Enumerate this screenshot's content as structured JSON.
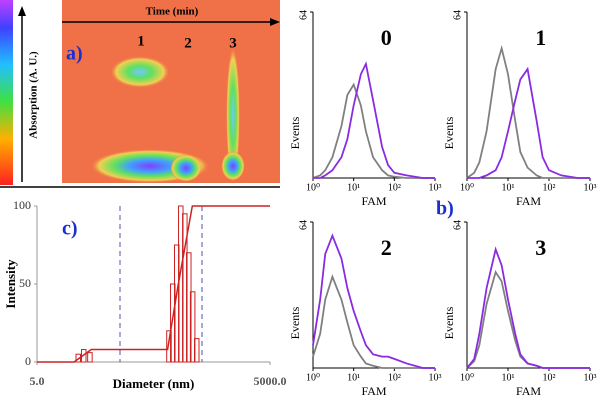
{
  "heatmap": {
    "label": "a)",
    "x_label": "Time (min)",
    "y_label": "Absorption (A. U.)",
    "peaks": [
      "1",
      "2",
      "3"
    ]
  },
  "panel_b_label": "b)",
  "chart_data": [
    {
      "type": "bar",
      "label": "c)",
      "x_label": "Diameter (nm)",
      "y_label": "Intensity",
      "log_x": true,
      "xlim": [
        5,
        5000
      ],
      "xticks": [
        {
          "value": 5,
          "label": "5.0"
        },
        {
          "value": 5000,
          "label": "5000.0"
        }
      ],
      "ylim": [
        0,
        100
      ],
      "yticks": [
        0,
        50,
        100
      ],
      "color": "#cc2222",
      "bars": {
        "x": [
          17,
          20,
          24,
          250,
          280,
          315,
          355,
          400,
          450,
          505,
          570
        ],
        "values": [
          5,
          8,
          6,
          20,
          50,
          75,
          100,
          95,
          70,
          45,
          15
        ]
      },
      "line": {
        "x": [
          5,
          15,
          25,
          240,
          330,
          500,
          5000
        ],
        "values": [
          0,
          0,
          8,
          8,
          50,
          100,
          100
        ]
      }
    },
    {
      "type": "line",
      "title": "0",
      "x_label": "FAM",
      "y_label": "Events",
      "log_x": true,
      "xlim": [
        1,
        1000
      ],
      "xticks": [
        {
          "value": 1,
          "label": "10⁰"
        },
        {
          "value": 10,
          "label": "10¹"
        },
        {
          "value": 100,
          "label": "10²"
        },
        {
          "value": 1000,
          "label": "10³"
        }
      ],
      "ylim": [
        0,
        64
      ],
      "yticks": [
        64
      ],
      "x": [
        1,
        1.5,
        2,
        3,
        5,
        7,
        10,
        15,
        20,
        30,
        50,
        70,
        100,
        200,
        500,
        1000
      ],
      "series": [
        {
          "color": "#808080",
          "values": [
            0,
            1,
            3,
            8,
            20,
            32,
            36,
            28,
            18,
            8,
            3,
            1,
            0.5,
            0,
            0,
            0
          ]
        },
        {
          "color": "#8a2be2",
          "values": [
            0,
            0,
            1,
            3,
            8,
            15,
            28,
            40,
            44,
            30,
            12,
            5,
            2,
            1,
            0,
            0
          ]
        }
      ]
    },
    {
      "type": "line",
      "title": "1",
      "x_label": "FAM",
      "y_label": "Events",
      "log_x": true,
      "xlim": [
        1,
        1000
      ],
      "xticks": [
        {
          "value": 1,
          "label": "10⁰"
        },
        {
          "value": 10,
          "label": "10¹"
        },
        {
          "value": 100,
          "label": "10²"
        },
        {
          "value": 1000,
          "label": "10³"
        }
      ],
      "ylim": [
        0,
        64
      ],
      "yticks": [
        64
      ],
      "x": [
        1,
        1.5,
        2,
        3,
        5,
        7,
        10,
        15,
        20,
        30,
        50,
        70,
        100,
        200,
        500,
        1000
      ],
      "series": [
        {
          "color": "#808080",
          "values": [
            0,
            2,
            6,
            18,
            42,
            50,
            40,
            22,
            10,
            4,
            1,
            0,
            0,
            0,
            0,
            0
          ]
        },
        {
          "color": "#8a2be2",
          "values": [
            0,
            0,
            0,
            1,
            3,
            8,
            18,
            30,
            38,
            42,
            22,
            8,
            3,
            1,
            0,
            0
          ]
        }
      ]
    },
    {
      "type": "line",
      "title": "2",
      "x_label": "FAM",
      "y_label": "Events",
      "log_x": true,
      "xlim": [
        1,
        1000
      ],
      "xticks": [
        {
          "value": 1,
          "label": "10⁰"
        },
        {
          "value": 10,
          "label": "10¹"
        },
        {
          "value": 100,
          "label": "10²"
        },
        {
          "value": 1000,
          "label": "10³"
        }
      ],
      "ylim": [
        0,
        64
      ],
      "yticks": [
        64
      ],
      "x": [
        1,
        1.5,
        2,
        3,
        5,
        7,
        10,
        15,
        20,
        30,
        50,
        70,
        100,
        200,
        500,
        1000
      ],
      "series": [
        {
          "color": "#808080",
          "values": [
            5,
            15,
            30,
            40,
            30,
            20,
            10,
            5,
            2,
            1,
            0,
            0,
            0,
            0,
            0,
            0
          ]
        },
        {
          "color": "#8a2be2",
          "values": [
            10,
            30,
            50,
            58,
            48,
            35,
            25,
            16,
            10,
            6,
            5,
            5,
            4,
            2,
            0,
            0
          ]
        }
      ]
    },
    {
      "type": "line",
      "title": "3",
      "x_label": "FAM",
      "y_label": "Events",
      "log_x": true,
      "xlim": [
        1,
        1000
      ],
      "xticks": [
        {
          "value": 1,
          "label": "10⁰"
        },
        {
          "value": 10,
          "label": "10¹"
        },
        {
          "value": 100,
          "label": "10²"
        },
        {
          "value": 1000,
          "label": "10³"
        }
      ],
      "ylim": [
        0,
        64
      ],
      "yticks": [
        64
      ],
      "x": [
        1,
        1.5,
        2,
        3,
        5,
        7,
        10,
        15,
        20,
        30,
        50,
        70,
        100,
        200,
        500,
        1000
      ],
      "series": [
        {
          "color": "#808080",
          "values": [
            0,
            3,
            10,
            28,
            42,
            38,
            25,
            12,
            5,
            2,
            1,
            0,
            0,
            0,
            0,
            0
          ]
        },
        {
          "color": "#8a2be2",
          "values": [
            0,
            4,
            15,
            35,
            52,
            45,
            30,
            15,
            6,
            2,
            1,
            0,
            0,
            0,
            0,
            0
          ]
        }
      ]
    }
  ]
}
